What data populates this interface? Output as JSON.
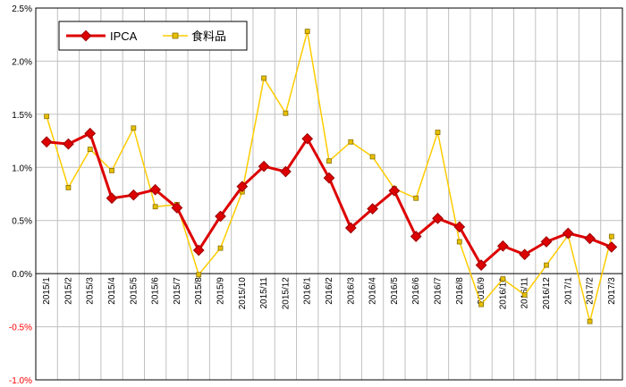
{
  "chart_data": {
    "type": "line",
    "categories": [
      "2015/1",
      "2015/2",
      "2015/3",
      "2015/4",
      "2015/5",
      "2015/6",
      "2015/7",
      "2015/8",
      "2015/9",
      "2015/10",
      "2015/11",
      "2015/12",
      "2016/1",
      "2016/2",
      "2016/3",
      "2016/4",
      "2016/5",
      "2016/6",
      "2016/7",
      "2016/8",
      "2016/9",
      "2016/10",
      "2016/11",
      "2016/12",
      "2017/1",
      "2017/2",
      "2017/3"
    ],
    "series": [
      {
        "name": "IPCA",
        "color": "#dd0000",
        "values": [
          1.24,
          1.22,
          1.32,
          0.71,
          0.74,
          0.79,
          0.62,
          0.22,
          0.54,
          0.82,
          1.01,
          0.96,
          1.27,
          0.9,
          0.43,
          0.61,
          0.78,
          0.35,
          0.52,
          0.44,
          0.08,
          0.26,
          0.18,
          0.3,
          0.38,
          0.33,
          0.25
        ]
      },
      {
        "name": "食料品",
        "color": "#ffcc00",
        "values": [
          1.48,
          0.81,
          1.17,
          0.97,
          1.37,
          0.63,
          0.65,
          -0.01,
          0.24,
          0.77,
          1.84,
          1.51,
          2.28,
          1.06,
          1.24,
          1.1,
          0.8,
          0.71,
          1.33,
          0.3,
          -0.29,
          -0.05,
          -0.2,
          0.08,
          0.36,
          -0.45,
          0.35
        ]
      }
    ],
    "yticks": [
      "2.5%",
      "2.0%",
      "1.5%",
      "1.0%",
      "0.5%",
      "0.0%",
      "-0.5%",
      "-1.0%"
    ],
    "ylim": [
      -1.0,
      2.5
    ],
    "grid": true,
    "legend_position": "top-left",
    "title": "",
    "xlabel": "",
    "ylabel": ""
  }
}
